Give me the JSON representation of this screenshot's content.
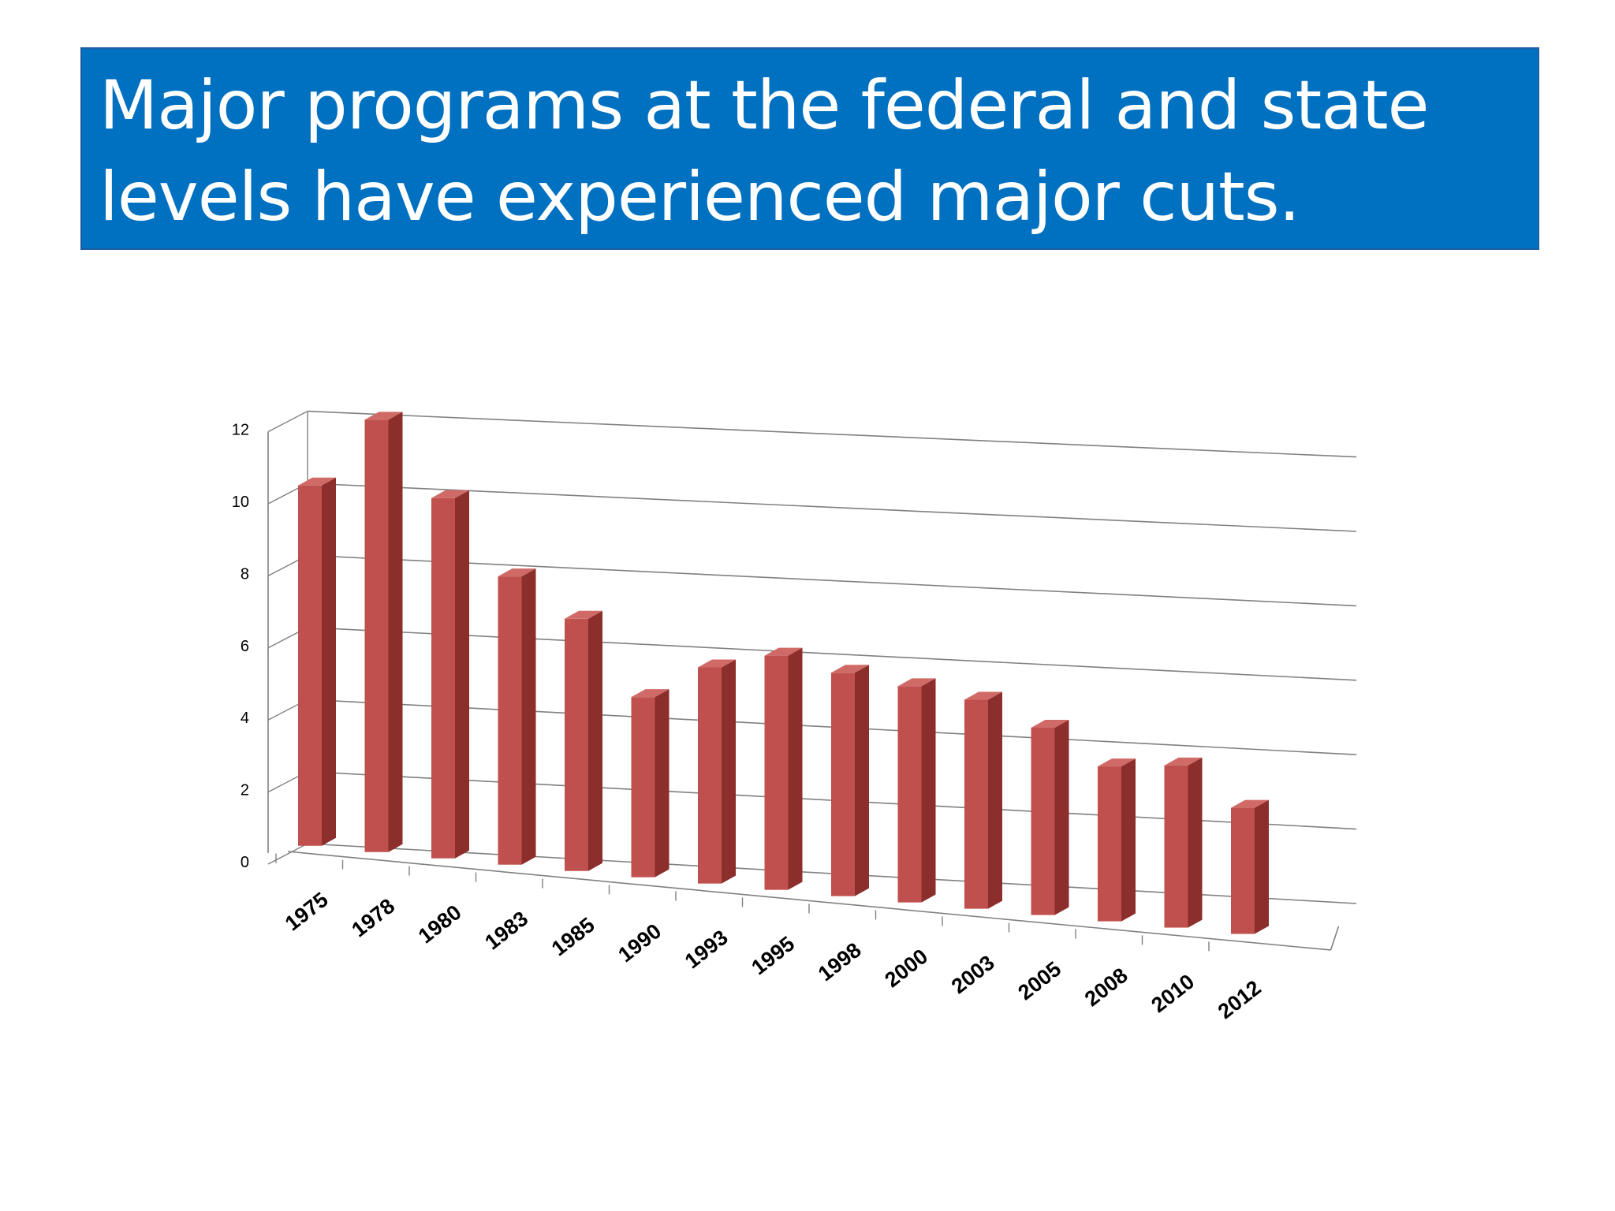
{
  "slide": {
    "title": "Major programs at the federal and state levels have experienced major cuts."
  },
  "chart_data": {
    "type": "bar",
    "style": "3d-column",
    "title": "",
    "xlabel": "",
    "ylabel": "",
    "categories": [
      "1975",
      "1978",
      "1980",
      "1983",
      "1985",
      "1990",
      "1993",
      "1995",
      "1998",
      "2000",
      "2003",
      "2005",
      "2008",
      "2010",
      "2012"
    ],
    "values": [
      10.0,
      12.0,
      10.0,
      8.0,
      7.0,
      5.0,
      6.0,
      6.5,
      6.2,
      6.0,
      5.8,
      5.2,
      4.3,
      4.5,
      3.5
    ],
    "ylim": [
      0,
      12
    ],
    "yticks": [
      "0",
      "2",
      "4",
      "6",
      "8",
      "10",
      "12"
    ],
    "grid": true,
    "legend": "none",
    "colors": {
      "bar_front": "#C0504D",
      "bar_side": "#8B2E2C",
      "bar_top": "#D06A66",
      "gridline": "#808080",
      "title_background": "#0070C0"
    }
  }
}
